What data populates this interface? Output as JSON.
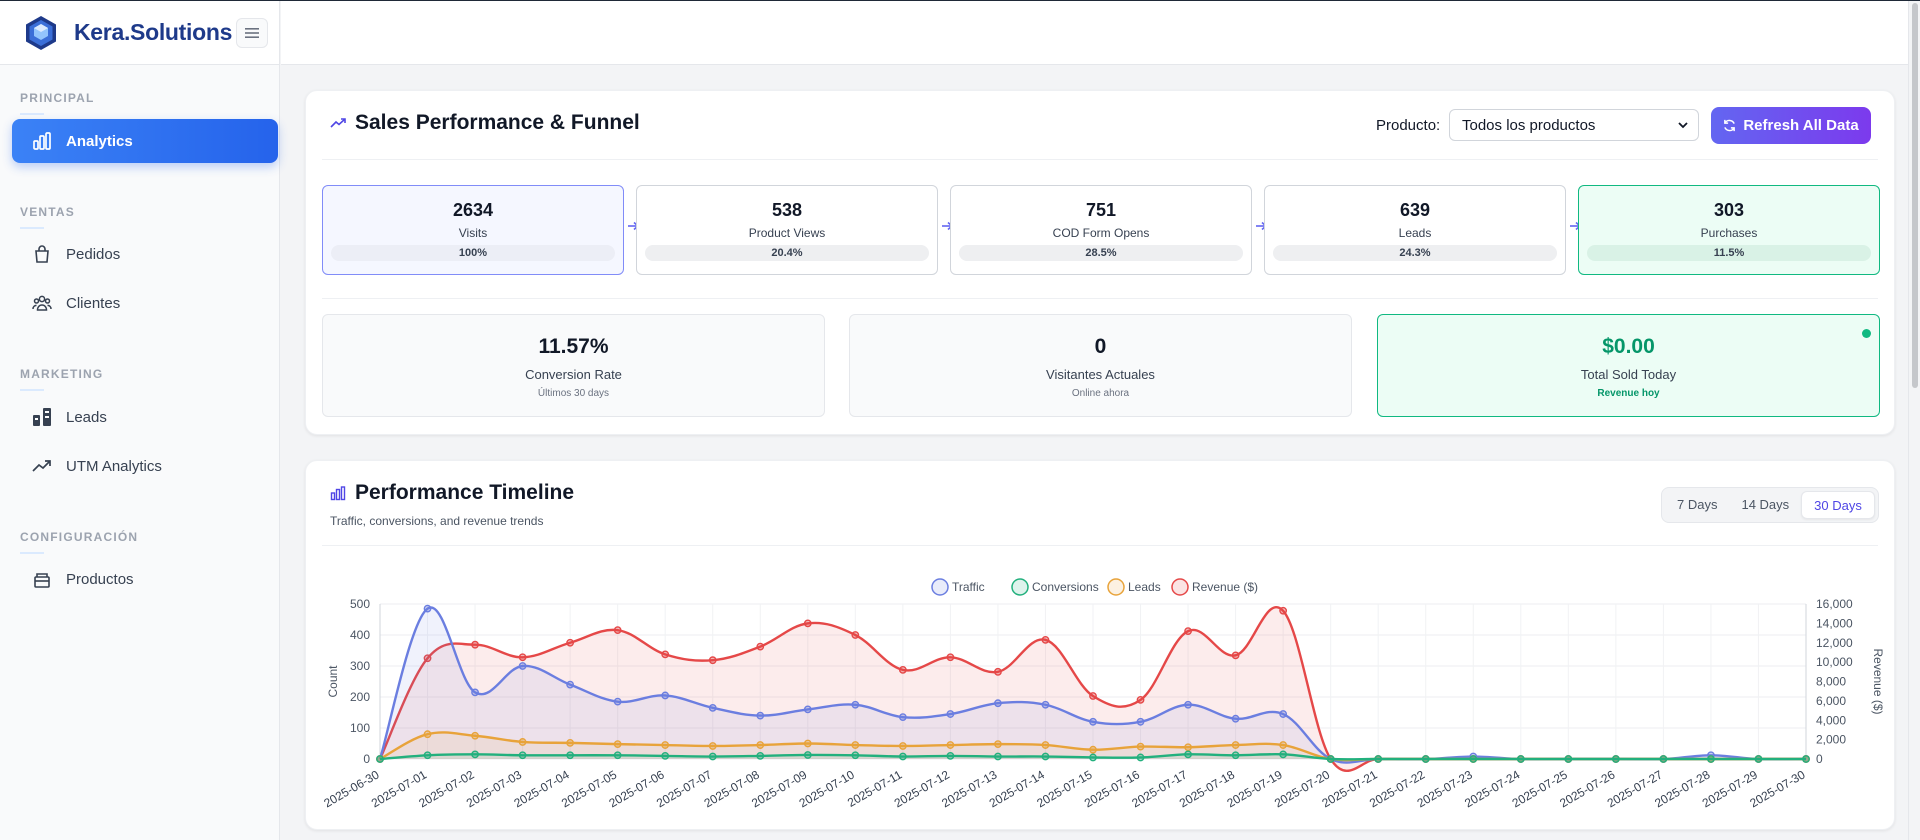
{
  "sidebar": {
    "brand": "Kera.Solutions",
    "sections": [
      {
        "title": "PRINCIPAL",
        "items": [
          {
            "label": "Analytics",
            "icon": "bar-chart-icon",
            "active": true
          }
        ]
      },
      {
        "title": "VENTAS",
        "items": [
          {
            "label": "Pedidos",
            "icon": "bag-icon"
          },
          {
            "label": "Clientes",
            "icon": "users-icon"
          }
        ]
      },
      {
        "title": "MARKETING",
        "items": [
          {
            "label": "Leads",
            "icon": "leads-icon"
          },
          {
            "label": "UTM Analytics",
            "icon": "trending-up-icon"
          }
        ]
      },
      {
        "title": "CONFIGURACIÓN",
        "items": [
          {
            "label": "Productos",
            "icon": "box-icon"
          }
        ]
      }
    ]
  },
  "sales": {
    "title": "Sales Performance & Funnel",
    "product_label": "Producto:",
    "product_value": "Todos los productos",
    "refresh_label": "Refresh All Data",
    "funnel": [
      {
        "value": "2634",
        "label": "Visits",
        "percent": "100%"
      },
      {
        "value": "538",
        "label": "Product Views",
        "percent": "20.4%"
      },
      {
        "value": "751",
        "label": "COD Form Opens",
        "percent": "28.5%"
      },
      {
        "value": "639",
        "label": "Leads",
        "percent": "24.3%"
      },
      {
        "value": "303",
        "label": "Purchases",
        "percent": "11.5%"
      }
    ],
    "kpis": [
      {
        "value": "11.57%",
        "label": "Conversion Rate",
        "sub": "Últimos 30 days"
      },
      {
        "value": "0",
        "label": "Visitantes Actuales",
        "sub": "Online ahora"
      },
      {
        "value": "$0.00",
        "label": "Total Sold Today",
        "sub": "Revenue hoy"
      }
    ]
  },
  "timeline": {
    "title": "Performance Timeline",
    "subtitle": "Traffic, conversions, and revenue trends",
    "ranges": [
      "7 Days",
      "14 Days",
      "30 Days"
    ],
    "active_range": "30 Days"
  },
  "colors": {
    "traffic": "#6b7ee0",
    "conversions": "#22b07d",
    "leads": "#e8a33a",
    "revenue": "#e54848"
  },
  "chart_data": {
    "type": "line",
    "legend": [
      "Traffic",
      "Conversions",
      "Leads",
      "Revenue ($)"
    ],
    "legend_position": "top-center",
    "ylabel": "Count",
    "y2label": "Revenue ($)",
    "ylim": [
      0,
      500
    ],
    "y2lim": [
      0,
      16000
    ],
    "yticks": [
      "500",
      "400",
      "300",
      "200",
      "100",
      "0"
    ],
    "y2ticks": [
      "16,000",
      "14,000",
      "12,000",
      "10,000",
      "8,000",
      "6,000",
      "4,000",
      "2,000",
      "0"
    ],
    "categories": [
      "2025-06-30",
      "2025-07-01",
      "2025-07-02",
      "2025-07-03",
      "2025-07-04",
      "2025-07-05",
      "2025-07-06",
      "2025-07-07",
      "2025-07-08",
      "2025-07-09",
      "2025-07-10",
      "2025-07-11",
      "2025-07-12",
      "2025-07-13",
      "2025-07-14",
      "2025-07-15",
      "2025-07-16",
      "2025-07-17",
      "2025-07-18",
      "2025-07-19",
      "2025-07-20",
      "2025-07-21",
      "2025-07-22",
      "2025-07-23",
      "2025-07-24",
      "2025-07-25",
      "2025-07-26",
      "2025-07-27",
      "2025-07-28",
      "2025-07-29",
      "2025-07-30"
    ],
    "series": [
      {
        "name": "Traffic",
        "axis": "left",
        "values": [
          0,
          485,
          215,
          300,
          240,
          185,
          205,
          165,
          140,
          160,
          175,
          135,
          145,
          180,
          175,
          120,
          120,
          175,
          130,
          145,
          0,
          0,
          0,
          8,
          0,
          0,
          0,
          0,
          12,
          0,
          0
        ]
      },
      {
        "name": "Conversions",
        "axis": "left",
        "values": [
          0,
          12,
          15,
          12,
          12,
          12,
          10,
          8,
          10,
          13,
          12,
          8,
          10,
          8,
          8,
          5,
          5,
          15,
          12,
          15,
          0,
          0,
          0,
          0,
          0,
          0,
          0,
          0,
          0,
          0,
          0
        ]
      },
      {
        "name": "Leads",
        "axis": "left",
        "values": [
          0,
          80,
          75,
          55,
          52,
          48,
          45,
          42,
          45,
          50,
          45,
          42,
          45,
          48,
          45,
          30,
          40,
          38,
          45,
          45,
          0,
          0,
          0,
          0,
          0,
          0,
          0,
          0,
          0,
          0,
          0
        ]
      },
      {
        "name": "Revenue ($)",
        "axis": "right",
        "values": [
          0,
          10400,
          11800,
          10500,
          12000,
          13300,
          10800,
          10200,
          11600,
          14000,
          12800,
          9200,
          10500,
          9000,
          12300,
          6500,
          6100,
          13200,
          10700,
          15300,
          0,
          0,
          0,
          0,
          0,
          0,
          0,
          0,
          0,
          0,
          0
        ]
      }
    ]
  }
}
